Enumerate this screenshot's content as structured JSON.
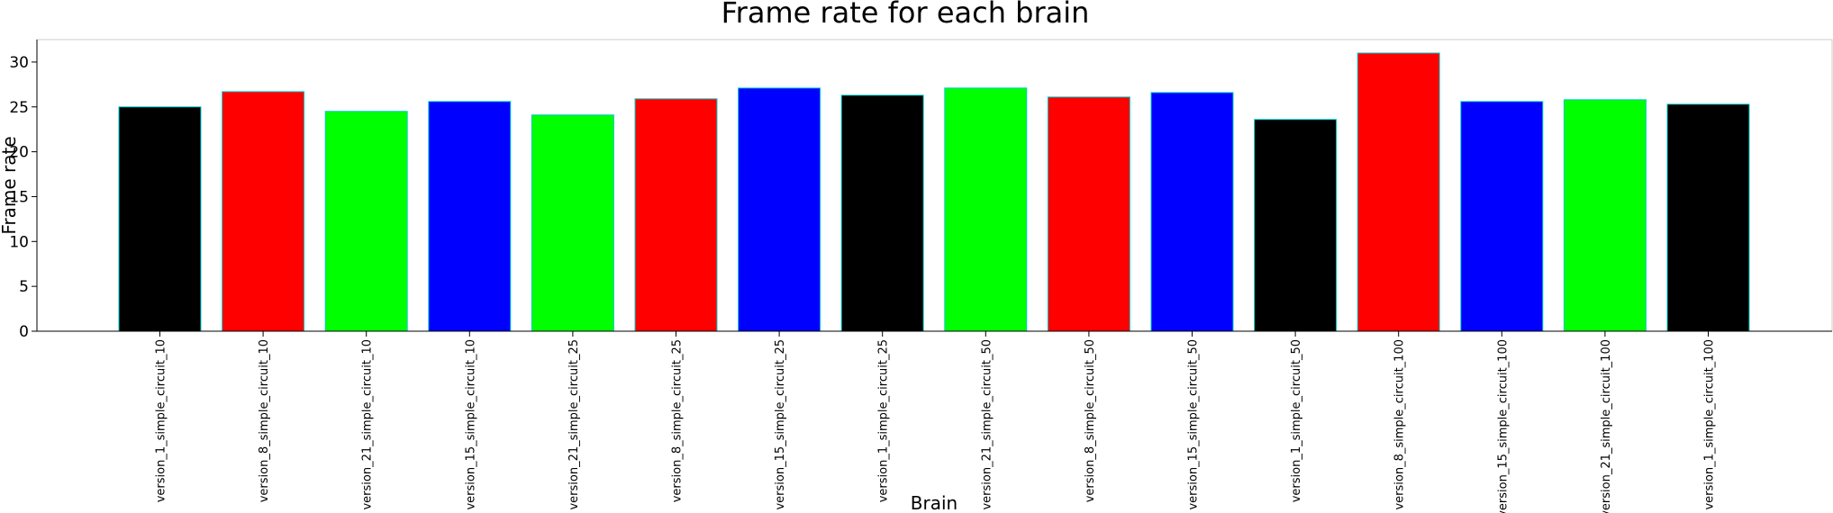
{
  "chart_data": {
    "type": "bar",
    "title": "Frame rate for each brain",
    "xlabel": "Brain",
    "ylabel": "Frame rate",
    "ylim": [
      0,
      32.5
    ],
    "yticks": [
      0,
      5,
      10,
      15,
      20,
      25,
      30
    ],
    "grid": false,
    "edge_color": "#00cccc",
    "categories": [
      "version_1_simple_circuit_10",
      "version_8_simple_circuit_10",
      "version_21_simple_circuit_10",
      "version_15_simple_circuit_10",
      "version_21_simple_circuit_25",
      "version_8_simple_circuit_25",
      "version_15_simple_circuit_25",
      "version_1_simple_circuit_25",
      "version_21_simple_circuit_50",
      "version_8_simple_circuit_50",
      "version_15_simple_circuit_50",
      "version_1_simple_circuit_50",
      "version_8_simple_circuit_100",
      "version_15_simple_circuit_100",
      "version_21_simple_circuit_100",
      "version_1_simple_circuit_100"
    ],
    "values": [
      25.0,
      26.7,
      24.5,
      25.6,
      24.1,
      25.9,
      27.1,
      26.3,
      27.1,
      26.1,
      26.6,
      23.6,
      31.0,
      25.6,
      25.8,
      25.3
    ],
    "colors": [
      "#000000",
      "#ff0000",
      "#00ff00",
      "#0000ff",
      "#00ff00",
      "#ff0000",
      "#0000ff",
      "#000000",
      "#00ff00",
      "#ff0000",
      "#0000ff",
      "#000000",
      "#ff0000",
      "#0000ff",
      "#00ff00",
      "#000000"
    ]
  }
}
